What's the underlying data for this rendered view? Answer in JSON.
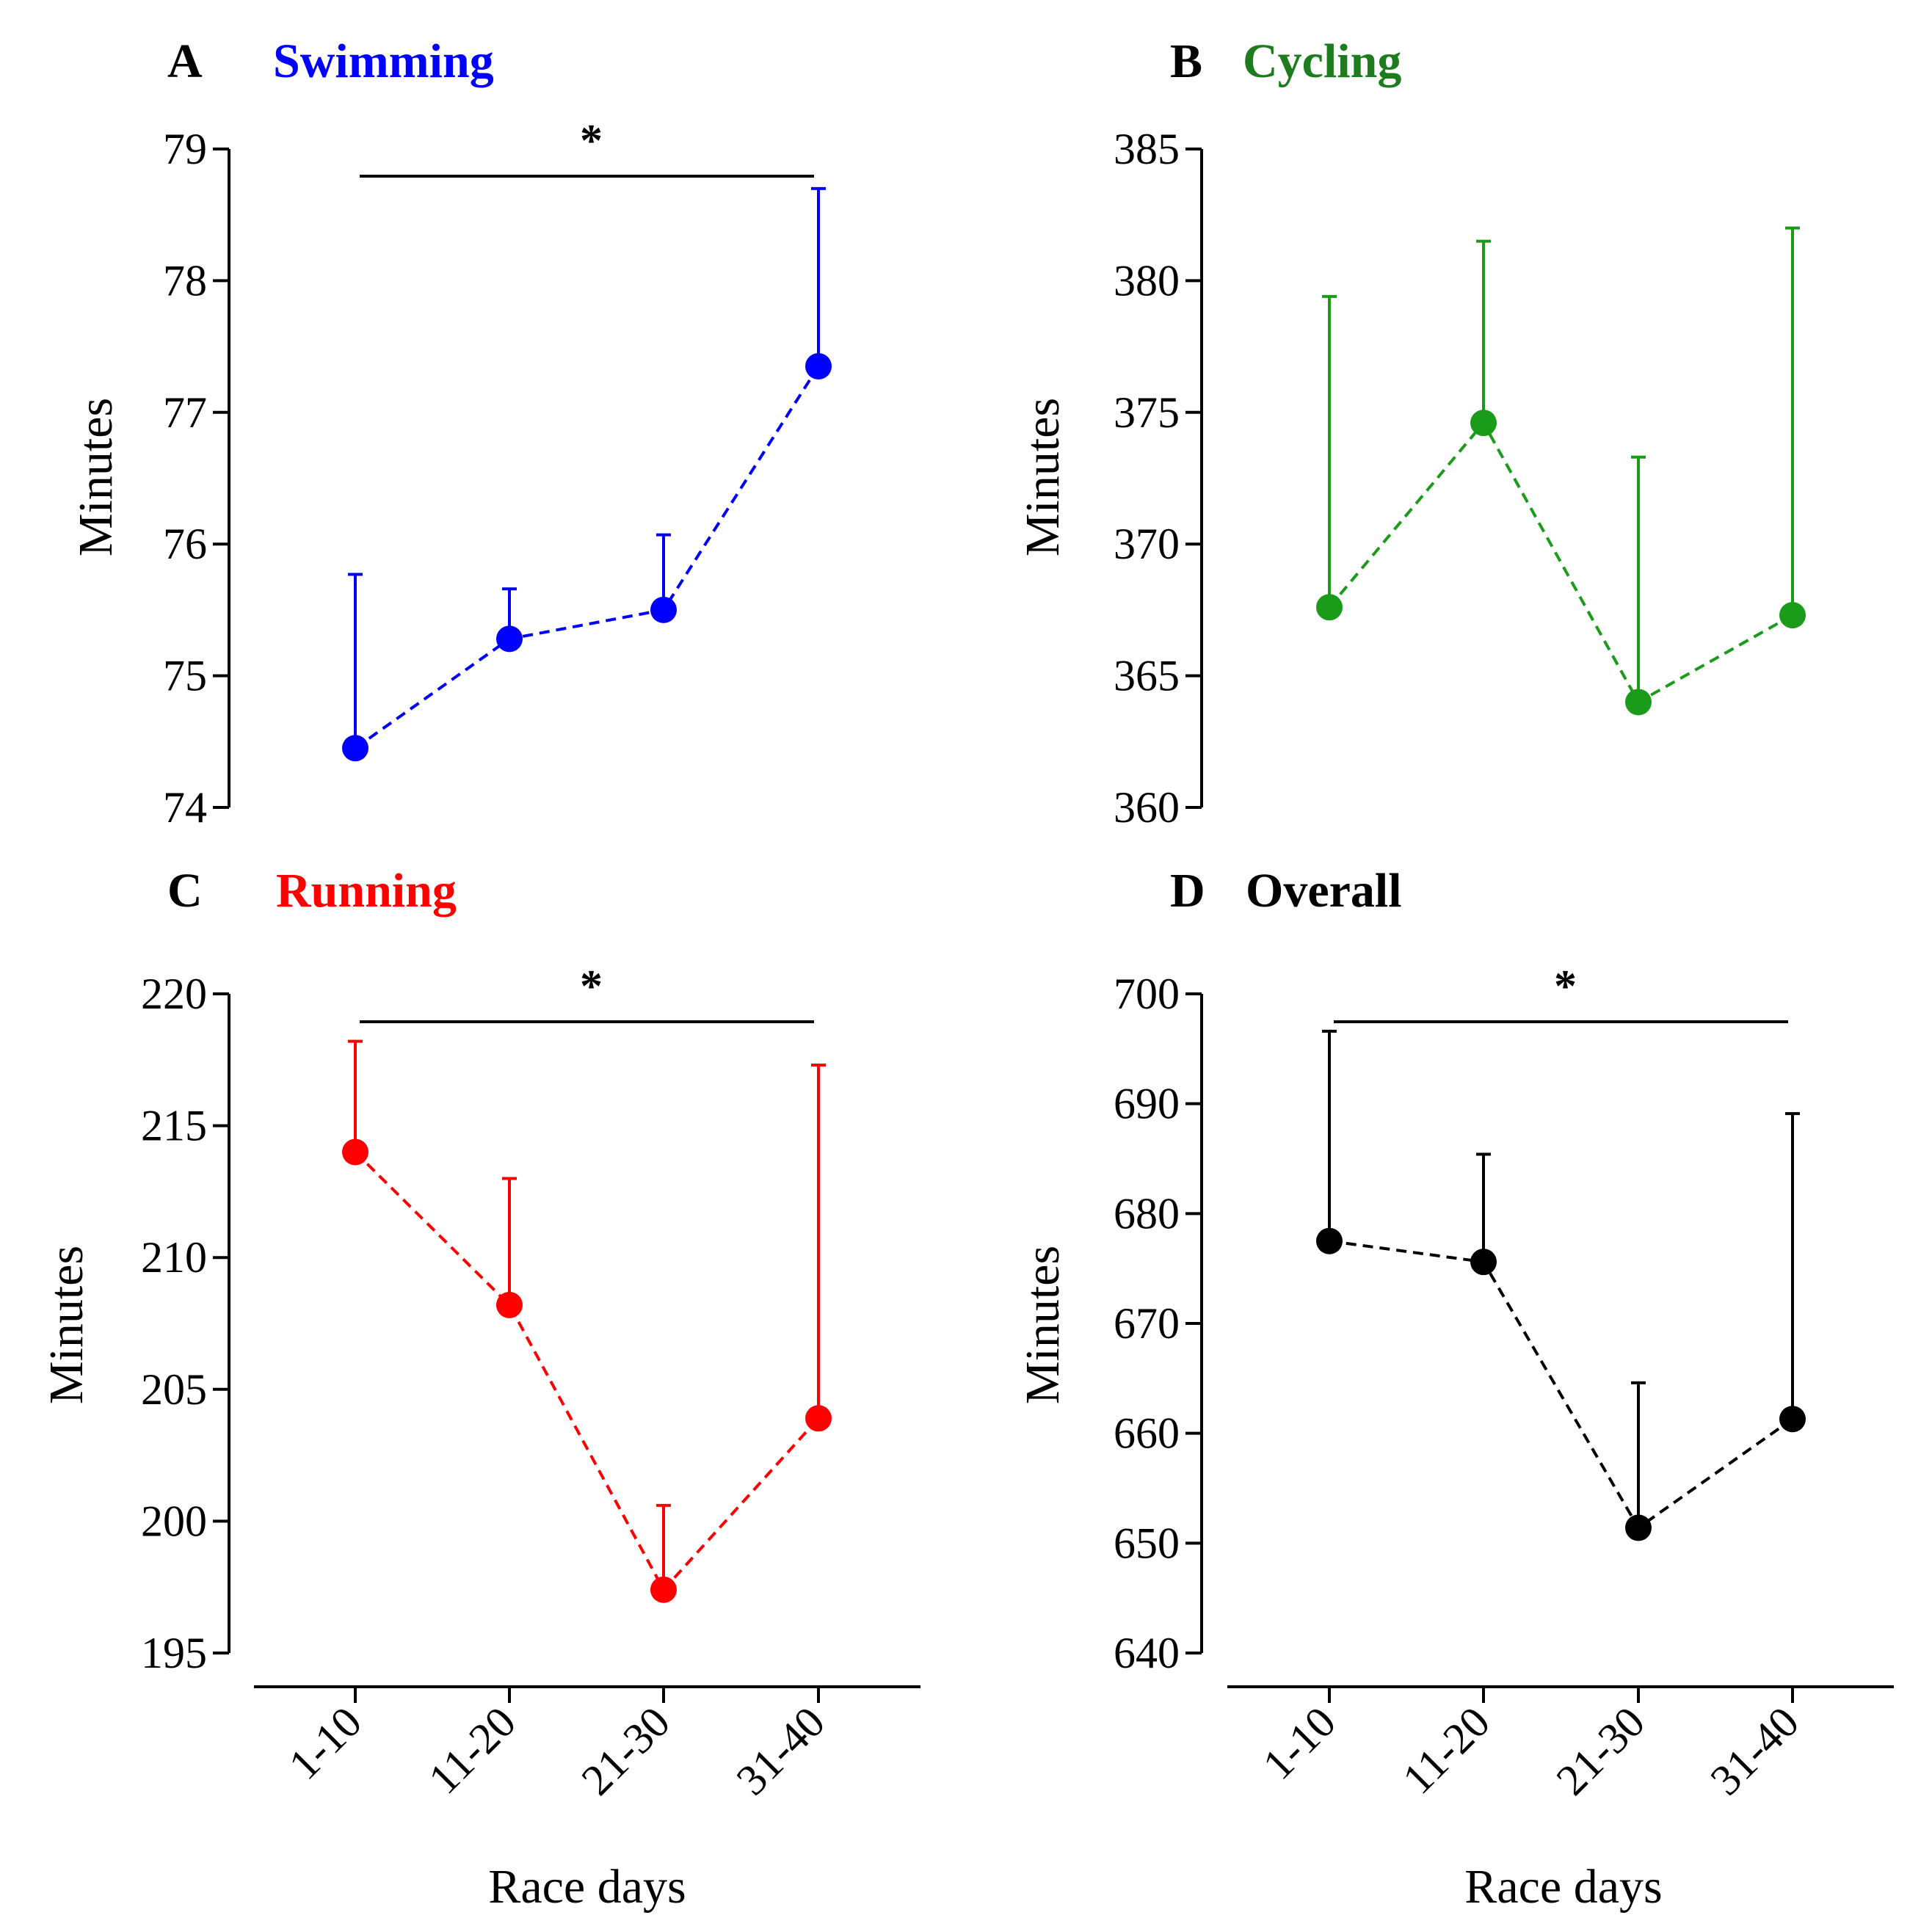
{
  "figure": {
    "shared_xlabel": "Race days",
    "shared_ylabel": "Minutes"
  },
  "chart_data": [
    {
      "panel": "A",
      "title": "Swimming",
      "color": "#0000ff",
      "type": "line",
      "categories": [
        "1-10",
        "11-20",
        "21-30",
        "31-40"
      ],
      "values": [
        74.45,
        75.28,
        75.5,
        77.35
      ],
      "error_upper": [
        75.77,
        75.66,
        76.07,
        78.7
      ],
      "ylim": [
        74,
        79
      ],
      "yticks": [
        74,
        75,
        76,
        77,
        78,
        79
      ],
      "ylabel": "Minutes",
      "xlabel": "",
      "significance": "*",
      "show_x_axis": false
    },
    {
      "panel": "B",
      "title": "Cycling",
      "color": "#1a9c1a",
      "title_color": "#1e7b1e",
      "type": "line",
      "categories": [
        "1-10",
        "11-20",
        "21-30",
        "31-40"
      ],
      "values": [
        367.6,
        374.6,
        364,
        367.3
      ],
      "error_upper": [
        379.4,
        381.5,
        373.3,
        382
      ],
      "ylim": [
        360,
        385
      ],
      "yticks": [
        360,
        365,
        370,
        375,
        380,
        385
      ],
      "ylabel": "Minutes",
      "xlabel": "",
      "significance": "",
      "show_x_axis": false
    },
    {
      "panel": "C",
      "title": "Running",
      "color": "#ff0000",
      "type": "line",
      "categories": [
        "1-10",
        "11-20",
        "21-30",
        "31-40"
      ],
      "values": [
        214,
        208.2,
        197.4,
        203.9
      ],
      "error_upper": [
        218.2,
        213,
        200.6,
        217.3
      ],
      "ylim": [
        195,
        220
      ],
      "yticks": [
        195,
        200,
        205,
        210,
        215,
        220
      ],
      "ylabel": "Minutes",
      "xlabel": "Race days",
      "significance": "*",
      "show_x_axis": true
    },
    {
      "panel": "D",
      "title": "Overall",
      "color": "#000000",
      "type": "line",
      "categories": [
        "1-10",
        "11-20",
        "21-30",
        "31-40"
      ],
      "values": [
        677.5,
        675.6,
        651.4,
        661.3
      ],
      "error_upper": [
        696.6,
        685.4,
        664.6,
        689.1
      ],
      "ylim": [
        640,
        700
      ],
      "yticks": [
        640,
        650,
        660,
        670,
        680,
        690,
        700
      ],
      "ylabel": "Minutes",
      "xlabel": "Race days",
      "significance": "*",
      "show_x_axis": true
    }
  ]
}
